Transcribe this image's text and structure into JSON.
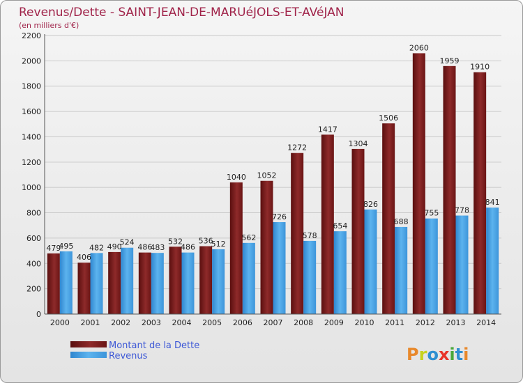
{
  "chart_data": {
    "type": "bar",
    "title": "Revenus/Dette - SAINT-JEAN-DE-MARUéJOLS-ET-AVéJAN",
    "subtitle": "(en milliers d'€)",
    "categories": [
      "2000",
      "2001",
      "2002",
      "2003",
      "2004",
      "2005",
      "2006",
      "2007",
      "2008",
      "2009",
      "2010",
      "2011",
      "2012",
      "2013",
      "2014"
    ],
    "series": [
      {
        "name": "Montant de la Dette",
        "color": "#7a1d1d",
        "values": [
          479,
          406,
          490,
          486,
          532,
          536,
          1040,
          1052,
          1272,
          1417,
          1304,
          1506,
          2060,
          1959,
          1910
        ]
      },
      {
        "name": "Revenus",
        "color": "#4fa7e6",
        "values": [
          495,
          482,
          524,
          483,
          486,
          512,
          562,
          726,
          578,
          654,
          826,
          688,
          755,
          778,
          841
        ]
      }
    ],
    "ylim": [
      0,
      2200
    ],
    "yticks": [
      0,
      200,
      400,
      600,
      800,
      1000,
      1200,
      1400,
      1600,
      1800,
      2000,
      2200
    ],
    "grid": true,
    "legend": "bottom-left"
  },
  "brand": {
    "text": "Proxiti"
  }
}
